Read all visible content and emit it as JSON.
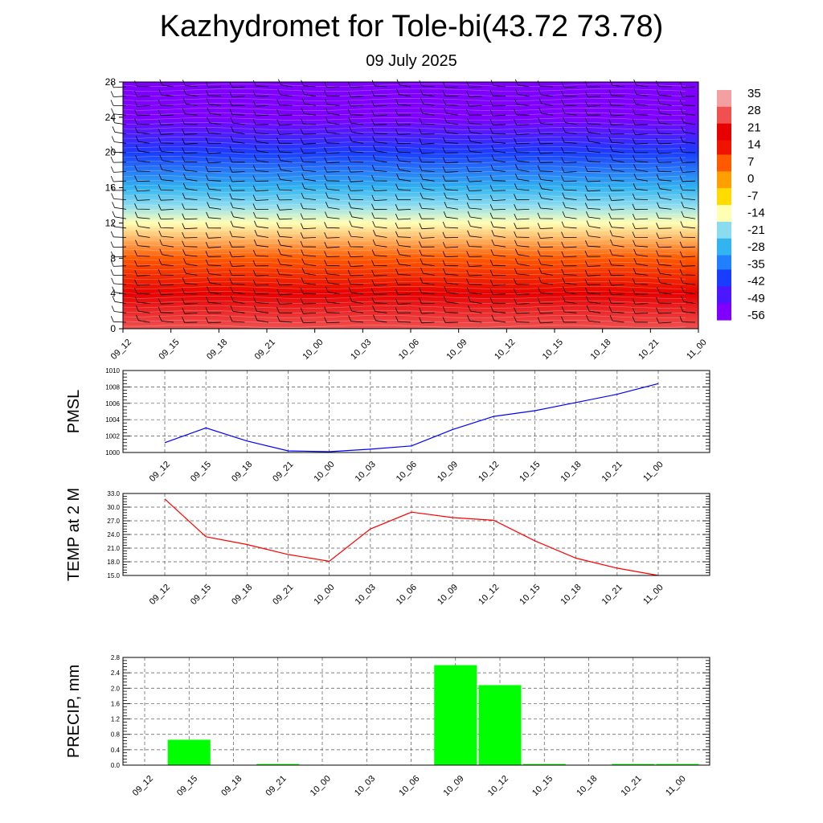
{
  "title": "Kazhydromet for Tole-bi(43.72 73.78)",
  "subtitle": "09 July 2025",
  "colors": {
    "pmsl_line": "#0000ff",
    "temp_line": "#ff0000",
    "precip_bar": "#00ff00",
    "colormap": [
      "#7f00ff",
      "#4b17ff",
      "#1a3cff",
      "#2080ff",
      "#32b4f0",
      "#8cdcf0",
      "#ffffb4",
      "#ffdc00",
      "#ffa000",
      "#ff5a00",
      "#f01400",
      "#e60000",
      "#f05050",
      "#f5a0a0"
    ]
  },
  "chart_data": [
    {
      "type": "heatmap",
      "title": "",
      "xlabel": "",
      "ylabel": "",
      "x_ticks": [
        "09_12",
        "09_15",
        "09_18",
        "09_21",
        "10_00",
        "10_03",
        "10_06",
        "10_09",
        "10_12",
        "10_15",
        "10_18",
        "10_21",
        "11_00"
      ],
      "y_ticks": [
        0,
        4,
        8,
        12,
        16,
        20,
        24,
        28
      ],
      "ylim": [
        0,
        28
      ],
      "colorbar_labels": [
        35,
        28,
        21,
        14,
        7,
        0,
        -7,
        -14,
        -21,
        -28,
        -35,
        -42,
        -49,
        -56
      ],
      "field": "temperature by level with wind barbs",
      "temperature_profile": [
        {
          "level": 0,
          "value": 28
        },
        {
          "level": 4,
          "value": 22
        },
        {
          "level": 8,
          "value": 8
        },
        {
          "level": 12,
          "value": -12
        },
        {
          "level": 14,
          "value": -20
        },
        {
          "level": 16,
          "value": -30
        },
        {
          "level": 20,
          "value": -40
        },
        {
          "level": 24,
          "value": -52
        },
        {
          "level": 28,
          "value": -58
        }
      ],
      "wind_barbs": true
    },
    {
      "type": "line",
      "title": "",
      "ylabel": "PMSL",
      "categories": [
        "09_12",
        "09_15",
        "09_18",
        "09_21",
        "10_00",
        "10_03",
        "10_06",
        "10_09",
        "10_12",
        "10_15",
        "10_18",
        "10_21",
        "11_00"
      ],
      "values": [
        1001.2,
        1003.0,
        1001.4,
        1000.2,
        1000.1,
        1000.4,
        1000.8,
        1002.8,
        1004.4,
        1005.1,
        1006.1,
        1007.1,
        1008.4
      ],
      "ylim": [
        1000,
        1010
      ],
      "y_ticks": [
        "1000",
        "1002",
        "1004",
        "1006",
        "1008",
        "1010"
      ],
      "grid": true
    },
    {
      "type": "line",
      "title": "",
      "ylabel": "TEMP at 2 M",
      "categories": [
        "09_12",
        "09_15",
        "09_18",
        "09_21",
        "10_00",
        "10_03",
        "10_06",
        "10_09",
        "10_12",
        "10_15",
        "10_18",
        "10_21",
        "11_00"
      ],
      "values": [
        31.8,
        23.5,
        21.8,
        19.6,
        18.1,
        25.2,
        28.9,
        27.7,
        27.1,
        22.6,
        18.8,
        16.6,
        15.0
      ],
      "ylim": [
        15,
        33
      ],
      "y_ticks": [
        "15.0",
        "18.0",
        "21.0",
        "24.0",
        "27.0",
        "30.0",
        "33.0"
      ],
      "grid": true
    },
    {
      "type": "bar",
      "title": "",
      "ylabel": "PRECIP, mm",
      "categories": [
        "09_12",
        "09_15",
        "09_18",
        "09_21",
        "10_00",
        "10_03",
        "10_06",
        "10_09",
        "10_12",
        "10_15",
        "10_18",
        "10_21",
        "11_00"
      ],
      "values": [
        0.0,
        0.66,
        0.0,
        0.03,
        0.0,
        0.0,
        0.0,
        2.6,
        2.08,
        0.03,
        0.0,
        0.03,
        0.03
      ],
      "ylim": [
        0,
        2.8
      ],
      "y_ticks": [
        "0.0",
        "0.4",
        "0.8",
        "1.2",
        "1.6",
        "2.0",
        "2.4",
        "2.8"
      ],
      "grid": true
    }
  ]
}
